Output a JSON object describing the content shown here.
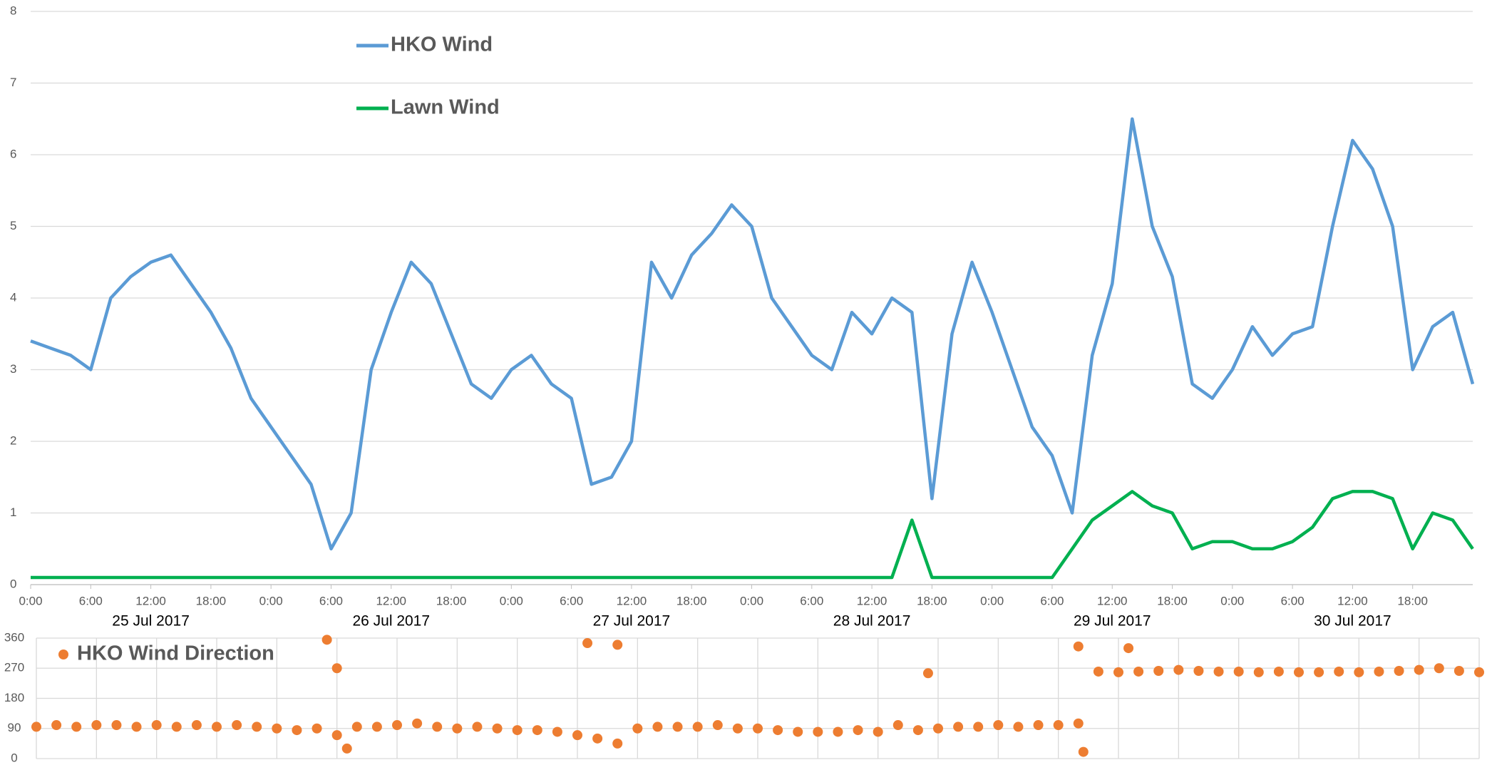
{
  "chart_data": [
    {
      "type": "line",
      "xlim": [
        "2017-07-25T00:00",
        "2017-07-31T00:00"
      ],
      "ylim": [
        0,
        8
      ],
      "yticks": [
        0,
        1,
        2,
        3,
        4,
        5,
        6,
        7,
        8
      ],
      "grid": true,
      "legend": "top-left",
      "xticks": [
        {
          "value": "2017-07-25T00:00",
          "label": "0:00"
        },
        {
          "value": "2017-07-25T06:00",
          "label": "6:00"
        },
        {
          "value": "2017-07-25T12:00",
          "label": "12:00"
        },
        {
          "value": "2017-07-25T18:00",
          "label": "18:00"
        },
        {
          "value": "2017-07-26T00:00",
          "label": "0:00"
        },
        {
          "value": "2017-07-26T06:00",
          "label": "6:00"
        },
        {
          "value": "2017-07-26T12:00",
          "label": "12:00"
        },
        {
          "value": "2017-07-26T18:00",
          "label": "18:00"
        },
        {
          "value": "2017-07-27T00:00",
          "label": "0:00"
        },
        {
          "value": "2017-07-27T06:00",
          "label": "6:00"
        },
        {
          "value": "2017-07-27T12:00",
          "label": "12:00"
        },
        {
          "value": "2017-07-27T18:00",
          "label": "18:00"
        },
        {
          "value": "2017-07-28T00:00",
          "label": "0:00"
        },
        {
          "value": "2017-07-28T06:00",
          "label": "6:00"
        },
        {
          "value": "2017-07-28T12:00",
          "label": "12:00"
        },
        {
          "value": "2017-07-28T18:00",
          "label": "18:00"
        },
        {
          "value": "2017-07-29T00:00",
          "label": "0:00"
        },
        {
          "value": "2017-07-29T06:00",
          "label": "6:00"
        },
        {
          "value": "2017-07-29T12:00",
          "label": "12:00"
        },
        {
          "value": "2017-07-29T18:00",
          "label": "18:00"
        },
        {
          "value": "2017-07-30T00:00",
          "label": "0:00"
        },
        {
          "value": "2017-07-30T06:00",
          "label": "6:00"
        },
        {
          "value": "2017-07-30T12:00",
          "label": "12:00"
        },
        {
          "value": "2017-07-30T18:00",
          "label": "18:00"
        }
      ],
      "date_labels": [
        {
          "value": "2017-07-25T12:00",
          "label": "25 Jul 2017"
        },
        {
          "value": "2017-07-26T12:00",
          "label": "26 Jul 2017"
        },
        {
          "value": "2017-07-27T12:00",
          "label": "27 Jul 2017"
        },
        {
          "value": "2017-07-28T12:00",
          "label": "28 Jul 2017"
        },
        {
          "value": "2017-07-29T12:00",
          "label": "29 Jul 2017"
        },
        {
          "value": "2017-07-30T12:00",
          "label": "30 Jul 2017"
        }
      ],
      "x": [
        "2017-07-25T00:00",
        "2017-07-25T02:00",
        "2017-07-25T04:00",
        "2017-07-25T06:00",
        "2017-07-25T08:00",
        "2017-07-25T10:00",
        "2017-07-25T12:00",
        "2017-07-25T14:00",
        "2017-07-25T16:00",
        "2017-07-25T18:00",
        "2017-07-25T20:00",
        "2017-07-25T22:00",
        "2017-07-26T00:00",
        "2017-07-26T02:00",
        "2017-07-26T04:00",
        "2017-07-26T06:00",
        "2017-07-26T08:00",
        "2017-07-26T10:00",
        "2017-07-26T12:00",
        "2017-07-26T14:00",
        "2017-07-26T16:00",
        "2017-07-26T18:00",
        "2017-07-26T20:00",
        "2017-07-26T22:00",
        "2017-07-27T00:00",
        "2017-07-27T02:00",
        "2017-07-27T04:00",
        "2017-07-27T06:00",
        "2017-07-27T08:00",
        "2017-07-27T10:00",
        "2017-07-27T12:00",
        "2017-07-27T14:00",
        "2017-07-27T16:00",
        "2017-07-27T18:00",
        "2017-07-27T20:00",
        "2017-07-27T22:00",
        "2017-07-28T00:00",
        "2017-07-28T02:00",
        "2017-07-28T04:00",
        "2017-07-28T06:00",
        "2017-07-28T08:00",
        "2017-07-28T10:00",
        "2017-07-28T12:00",
        "2017-07-28T14:00",
        "2017-07-28T16:00",
        "2017-07-28T18:00",
        "2017-07-28T20:00",
        "2017-07-28T22:00",
        "2017-07-29T00:00",
        "2017-07-29T02:00",
        "2017-07-29T04:00",
        "2017-07-29T06:00",
        "2017-07-29T08:00",
        "2017-07-29T10:00",
        "2017-07-29T12:00",
        "2017-07-29T14:00",
        "2017-07-29T16:00",
        "2017-07-29T18:00",
        "2017-07-29T20:00",
        "2017-07-29T22:00",
        "2017-07-30T00:00",
        "2017-07-30T02:00",
        "2017-07-30T04:00",
        "2017-07-30T06:00",
        "2017-07-30T08:00",
        "2017-07-30T10:00",
        "2017-07-30T12:00",
        "2017-07-30T14:00",
        "2017-07-30T16:00",
        "2017-07-30T18:00",
        "2017-07-30T20:00",
        "2017-07-30T22:00",
        "2017-07-31T00:00"
      ],
      "series": [
        {
          "name": "HKO Wind",
          "color": "#5b9bd5",
          "values": [
            3.4,
            3.3,
            3.2,
            3.0,
            4.0,
            4.3,
            4.5,
            4.6,
            4.2,
            3.8,
            3.3,
            2.6,
            2.2,
            1.8,
            1.4,
            0.5,
            1.0,
            3.0,
            3.8,
            4.5,
            4.2,
            3.5,
            2.8,
            2.6,
            3.0,
            3.2,
            2.8,
            2.6,
            1.4,
            1.5,
            2.0,
            4.5,
            4.0,
            4.6,
            4.9,
            5.3,
            5.0,
            4.0,
            3.6,
            3.2,
            3.0,
            3.8,
            3.5,
            4.0,
            3.8,
            1.2,
            3.5,
            4.5,
            3.8,
            3.0,
            2.2,
            1.8,
            1.0,
            3.2,
            4.2,
            6.5,
            5.0,
            4.3,
            2.8,
            2.6,
            3.0,
            3.6,
            3.2,
            3.5,
            3.6,
            5.0,
            6.2,
            5.8,
            5.0,
            3.0,
            3.6,
            3.8,
            2.8
          ]
        },
        {
          "name": "Lawn Wind",
          "color": "#00b050",
          "values": [
            0.1,
            0.1,
            0.1,
            0.1,
            0.1,
            0.1,
            0.1,
            0.1,
            0.1,
            0.1,
            0.1,
            0.1,
            0.1,
            0.1,
            0.1,
            0.1,
            0.1,
            0.1,
            0.1,
            0.1,
            0.1,
            0.1,
            0.1,
            0.1,
            0.1,
            0.1,
            0.1,
            0.1,
            0.1,
            0.1,
            0.1,
            0.1,
            0.1,
            0.1,
            0.1,
            0.1,
            0.1,
            0.1,
            0.1,
            0.1,
            0.1,
            0.1,
            0.1,
            0.1,
            0.9,
            0.1,
            0.1,
            0.1,
            0.1,
            0.1,
            0.1,
            0.1,
            0.5,
            0.9,
            1.1,
            1.3,
            1.1,
            1.0,
            0.5,
            0.6,
            0.6,
            0.5,
            0.5,
            0.6,
            0.8,
            1.2,
            1.3,
            1.3,
            1.2,
            0.5,
            1.0,
            0.9,
            0.5
          ]
        }
      ]
    },
    {
      "type": "scatter",
      "xlim": [
        "2017-07-25T00:00",
        "2017-07-31T00:00"
      ],
      "ylim": [
        0,
        360
      ],
      "yticks": [
        0,
        90,
        180,
        270,
        360
      ],
      "grid": true,
      "legend": "top-left",
      "xticks": [
        "2017-07-25T06:00",
        "2017-07-25T12:00",
        "2017-07-25T18:00",
        "2017-07-26T00:00",
        "2017-07-26T06:00",
        "2017-07-26T12:00",
        "2017-07-26T18:00",
        "2017-07-27T00:00",
        "2017-07-27T06:00",
        "2017-07-27T12:00",
        "2017-07-27T18:00",
        "2017-07-28T00:00",
        "2017-07-28T06:00",
        "2017-07-28T12:00",
        "2017-07-28T18:00",
        "2017-07-29T00:00",
        "2017-07-29T06:00",
        "2017-07-29T12:00",
        "2017-07-29T18:00",
        "2017-07-30T00:00",
        "2017-07-30T06:00",
        "2017-07-30T12:00",
        "2017-07-30T18:00",
        "2017-07-31T00:00"
      ],
      "series": [
        {
          "name": "HKO Wind Direction",
          "color": "#ed7d31",
          "x": [
            "2017-07-25T00:00",
            "2017-07-25T02:00",
            "2017-07-25T04:00",
            "2017-07-25T06:00",
            "2017-07-25T08:00",
            "2017-07-25T10:00",
            "2017-07-25T12:00",
            "2017-07-25T14:00",
            "2017-07-25T16:00",
            "2017-07-25T18:00",
            "2017-07-25T20:00",
            "2017-07-25T22:00",
            "2017-07-26T00:00",
            "2017-07-26T02:00",
            "2017-07-26T04:00",
            "2017-07-26T06:00",
            "2017-07-26T08:00",
            "2017-07-26T10:00",
            "2017-07-26T12:00",
            "2017-07-26T14:00",
            "2017-07-26T16:00",
            "2017-07-26T18:00",
            "2017-07-26T20:00",
            "2017-07-26T22:00",
            "2017-07-27T00:00",
            "2017-07-27T02:00",
            "2017-07-27T04:00",
            "2017-07-27T06:00",
            "2017-07-27T08:00",
            "2017-07-27T10:00",
            "2017-07-27T12:00",
            "2017-07-27T14:00",
            "2017-07-27T16:00",
            "2017-07-27T18:00",
            "2017-07-27T20:00",
            "2017-07-27T22:00",
            "2017-07-28T00:00",
            "2017-07-28T02:00",
            "2017-07-28T04:00",
            "2017-07-28T06:00",
            "2017-07-28T08:00",
            "2017-07-28T10:00",
            "2017-07-28T12:00",
            "2017-07-28T14:00",
            "2017-07-28T16:00",
            "2017-07-28T18:00",
            "2017-07-28T20:00",
            "2017-07-28T22:00",
            "2017-07-29T00:00",
            "2017-07-29T02:00",
            "2017-07-29T04:00",
            "2017-07-29T06:00",
            "2017-07-29T08:00",
            "2017-07-29T10:00",
            "2017-07-29T12:00",
            "2017-07-29T14:00",
            "2017-07-29T16:00",
            "2017-07-29T18:00",
            "2017-07-29T20:00",
            "2017-07-29T22:00",
            "2017-07-30T00:00",
            "2017-07-30T02:00",
            "2017-07-30T04:00",
            "2017-07-30T06:00",
            "2017-07-30T08:00",
            "2017-07-30T10:00",
            "2017-07-30T12:00",
            "2017-07-30T14:00",
            "2017-07-30T16:00",
            "2017-07-30T18:00",
            "2017-07-30T20:00",
            "2017-07-30T22:00",
            "2017-07-31T00:00",
            "2017-07-26T05:00",
            "2017-07-26T06:00",
            "2017-07-26T07:00",
            "2017-07-27T07:00",
            "2017-07-27T10:00",
            "2017-07-28T17:00",
            "2017-07-29T08:00",
            "2017-07-29T08:30",
            "2017-07-29T13:00"
          ],
          "values": [
            95,
            100,
            95,
            100,
            100,
            95,
            100,
            95,
            100,
            95,
            100,
            95,
            90,
            85,
            90,
            70,
            95,
            95,
            100,
            105,
            95,
            90,
            95,
            90,
            85,
            85,
            80,
            70,
            60,
            45,
            90,
            95,
            95,
            95,
            100,
            90,
            90,
            85,
            80,
            80,
            80,
            85,
            80,
            100,
            85,
            90,
            95,
            95,
            100,
            95,
            100,
            100,
            105,
            260,
            258,
            260,
            262,
            265,
            262,
            260,
            260,
            258,
            260,
            258,
            258,
            260,
            258,
            260,
            262,
            265,
            270,
            262,
            258,
            355,
            270,
            30,
            345,
            340,
            255,
            335,
            20,
            330
          ]
        }
      ]
    }
  ]
}
